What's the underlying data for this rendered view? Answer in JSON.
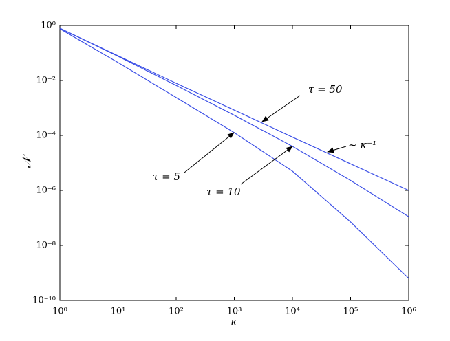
{
  "chart_data": {
    "type": "line",
    "log_x": true,
    "log_y": true,
    "xlabel": "κ",
    "ylabel": "𝒩",
    "x": [
      1,
      10,
      100,
      1000,
      10000,
      100000,
      1000000
    ],
    "series": [
      {
        "color": "#3b4fe6",
        "values": [
          0.79,
          0.079,
          0.0079,
          0.00083,
          8.7e-05,
          9.3e-06,
          1e-06
        ]
      },
      {
        "color": "#3b4fe6",
        "values": [
          0.79,
          0.076,
          0.0066,
          0.00054,
          4e-05,
          2.3e-06,
          1.1e-07
        ]
      },
      {
        "color": "#3b4fe6",
        "values": [
          0.76,
          0.045,
          0.0024,
          0.000126,
          5e-06,
          7.1e-08,
          6.3e-10
        ]
      }
    ],
    "annotations": [
      "τ = 50",
      "∼ κ⁻¹",
      "τ = 5",
      "τ = 10"
    ],
    "xlim": [
      1,
      1000000
    ],
    "ylim": [
      1e-10,
      1
    ],
    "xticks": [
      {
        "value": 1,
        "label": "10⁰"
      },
      {
        "value": 10,
        "label": "10¹"
      },
      {
        "value": 100,
        "label": "10²"
      },
      {
        "value": 1000,
        "label": "10³"
      },
      {
        "value": 10000,
        "label": "10⁴"
      },
      {
        "value": 100000,
        "label": "10⁵"
      },
      {
        "value": 1000000,
        "label": "10⁶"
      }
    ],
    "yticks": [
      {
        "value": 1e-10,
        "label": "10⁻¹⁰"
      },
      {
        "value": 1e-08,
        "label": "10⁻⁸"
      },
      {
        "value": 1e-06,
        "label": "10⁻⁶"
      },
      {
        "value": 0.0001,
        "label": "10⁻⁴"
      },
      {
        "value": 0.01,
        "label": "10⁻²"
      },
      {
        "value": 1,
        "label": "10⁰"
      }
    ]
  }
}
